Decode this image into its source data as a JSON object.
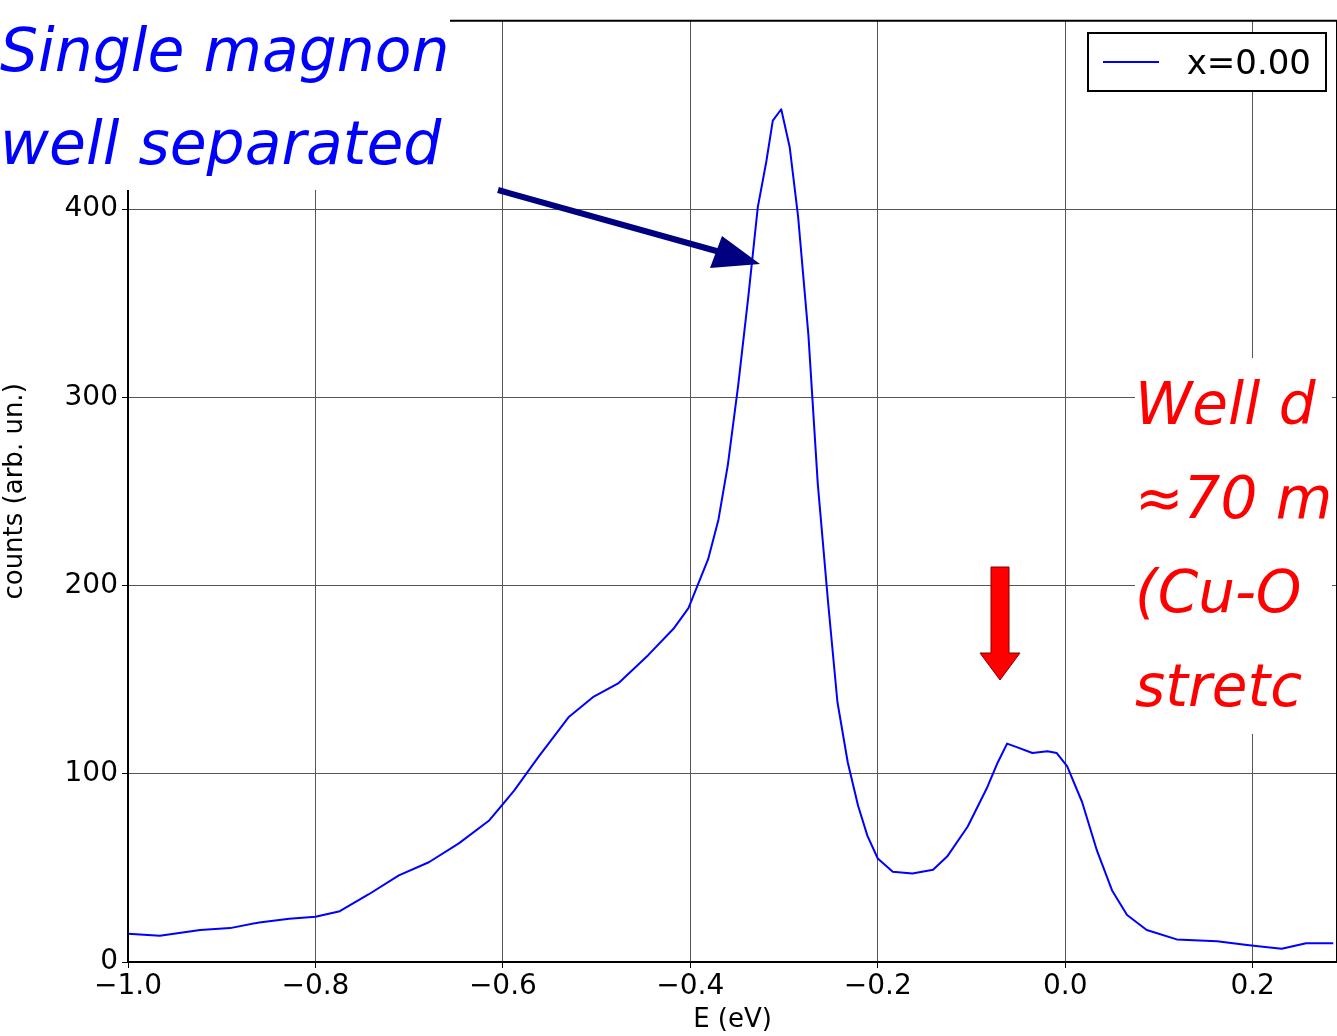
{
  "chart_data": {
    "type": "line",
    "xlabel": "E (eV)",
    "ylabel": "counts (arb. un.)",
    "annotations": [
      "Single magnon\nwell separated",
      "Well d\n≈70 m\n(Cu-O\nstretc"
    ],
    "xlim": [
      -1,
      0.29
    ],
    "ylim": [
      0,
      500
    ],
    "xticks": [
      {
        "value": -1,
        "label": "−1.0"
      },
      {
        "value": -0.8,
        "label": "−0.8"
      },
      {
        "value": -0.6,
        "label": "−0.6"
      },
      {
        "value": -0.4,
        "label": "−0.4"
      },
      {
        "value": -0.2,
        "label": "−0.2"
      },
      {
        "value": 0,
        "label": "0.0"
      },
      {
        "value": 0.2,
        "label": "0.2"
      }
    ],
    "yticks": [
      0,
      100,
      200,
      300,
      400
    ],
    "grid": true,
    "legend": "top right",
    "marker": "none",
    "line_style": "solid",
    "series": [
      {
        "name": "x=0.00",
        "color": "#0000ff",
        "x": [
          -1.0,
          -0.966,
          -0.923,
          -0.891,
          -0.86,
          -0.828,
          -0.8,
          -0.774,
          -0.743,
          -0.711,
          -0.679,
          -0.647,
          -0.615,
          -0.588,
          -0.562,
          -0.53,
          -0.503,
          -0.477,
          -0.445,
          -0.418,
          -0.402,
          -0.381,
          -0.37,
          -0.36,
          -0.349,
          -0.338,
          -0.328,
          -0.319,
          -0.312,
          -0.303,
          -0.294,
          -0.285,
          -0.274,
          -0.264,
          -0.253,
          -0.243,
          -0.232,
          -0.221,
          -0.211,
          -0.2,
          -0.184,
          -0.163,
          -0.141,
          -0.126,
          -0.104,
          -0.083,
          -0.072,
          -0.062,
          -0.051,
          -0.035,
          -0.019,
          -0.009,
          0.002,
          0.018,
          0.034,
          0.05,
          0.066,
          0.087,
          0.119,
          0.162,
          0.194,
          0.231,
          0.257,
          0.286
        ],
        "values": [
          15,
          14,
          17,
          18,
          21,
          23,
          24,
          27,
          36,
          46,
          53,
          63,
          75,
          91,
          109,
          130,
          141,
          148,
          163,
          177,
          188,
          214,
          235,
          264,
          306,
          354,
          401,
          425,
          447,
          453,
          433,
          396,
          333,
          254,
          191,
          138,
          106,
          83,
          67,
          55,
          48,
          47,
          49,
          56,
          72,
          93,
          106,
          116,
          114,
          111,
          112,
          111,
          104,
          85,
          59,
          38,
          25,
          17,
          12,
          11,
          9,
          7,
          10,
          10
        ]
      }
    ]
  }
}
